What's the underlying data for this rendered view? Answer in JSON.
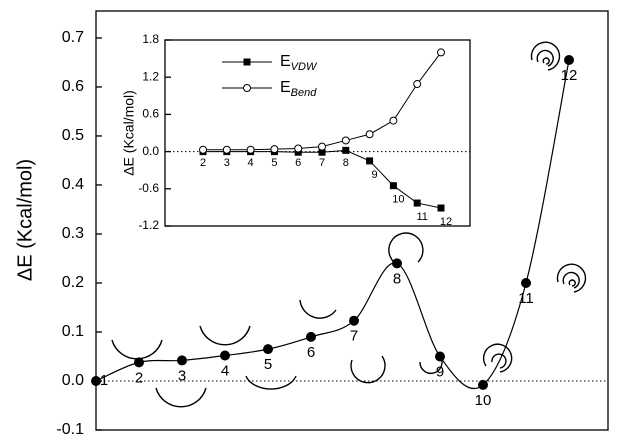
{
  "chart_data": [
    {
      "type": "line",
      "ylabel": "ΔE (Kcal/mol)",
      "categories": [
        "1",
        "2",
        "3",
        "4",
        "5",
        "6",
        "7",
        "8",
        "9",
        "10",
        "11",
        "12"
      ],
      "values": [
        0.0,
        0.038,
        0.042,
        0.052,
        0.065,
        0.09,
        0.123,
        0.24,
        0.05,
        -0.008,
        0.2,
        0.655
      ],
      "color": "#000000",
      "ylim": [
        -0.1,
        0.755
      ],
      "yticks": [
        -0.1,
        {
          "value": 0,
          "label": "0.0"
        },
        0.1,
        0.2,
        0.3,
        0.4,
        0.5,
        0.6,
        0.7
      ],
      "reference_line": 0
    },
    {
      "type": "line",
      "ylabel": "ΔE (Kcal/mol)",
      "categories": [
        "2",
        "3",
        "4",
        "5",
        "6",
        "7",
        "8",
        "9",
        "10",
        "11",
        "12"
      ],
      "series": [
        {
          "name": "E",
          "subscript": "VDW",
          "marker": "square",
          "color": "#000000",
          "values": [
            0.0,
            0.0,
            0.0,
            0.0,
            -0.01,
            -0.01,
            0.02,
            -0.15,
            -0.55,
            -0.83,
            -0.91
          ]
        },
        {
          "name": "E",
          "subscript": "Bend",
          "marker": "circle",
          "color": "#000000",
          "values": [
            0.03,
            0.03,
            0.03,
            0.04,
            0.05,
            0.08,
            0.18,
            0.28,
            0.5,
            1.09,
            1.6
          ]
        }
      ],
      "ylim": [
        -1.2,
        1.8
      ],
      "yticks": [
        -1.2,
        -0.6,
        {
          "value": 0,
          "label": "0.0"
        },
        0.6,
        1.2,
        1.8
      ],
      "reference_line": 0
    }
  ]
}
